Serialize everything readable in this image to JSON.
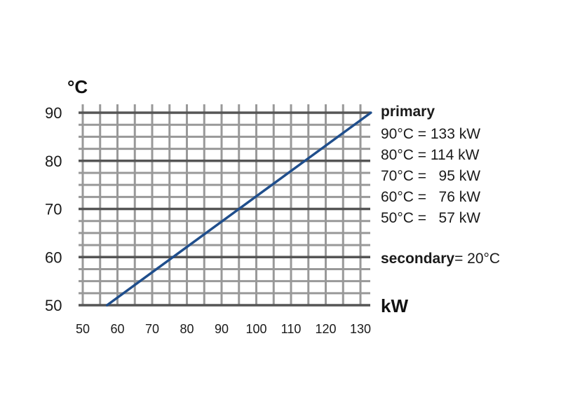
{
  "chart_data": {
    "type": "line",
    "x_unit": "kW",
    "y_unit": "°C",
    "xlim": [
      50,
      130
    ],
    "ylim": [
      50,
      90
    ],
    "x_ticks": [
      "50",
      "60",
      "70",
      "80",
      "90",
      "100",
      "110",
      "120",
      "130"
    ],
    "y_ticks": [
      "50",
      "60",
      "70",
      "80",
      "90"
    ],
    "grid": true,
    "series": [
      {
        "color": "#1f4e8c",
        "points": [
          {
            "x": 57,
            "y": 50
          },
          {
            "x": 76,
            "y": 60
          },
          {
            "x": 95,
            "y": 70
          },
          {
            "x": 114,
            "y": 80
          },
          {
            "x": 133,
            "y": 90
          }
        ]
      }
    ],
    "legend": {
      "position": "right",
      "title": "primary",
      "rows": [
        "90°C = 133 kW",
        "80°C = 114 kW",
        "70°C =   95 kW",
        "60°C =   76 kW",
        "50°C =   57 kW"
      ],
      "secondary_label": "secondary",
      "secondary_value": "= 20°C"
    },
    "colors": {
      "grid": "#999999",
      "line": "#1f4e8c",
      "text": "#1a1a1a"
    }
  }
}
